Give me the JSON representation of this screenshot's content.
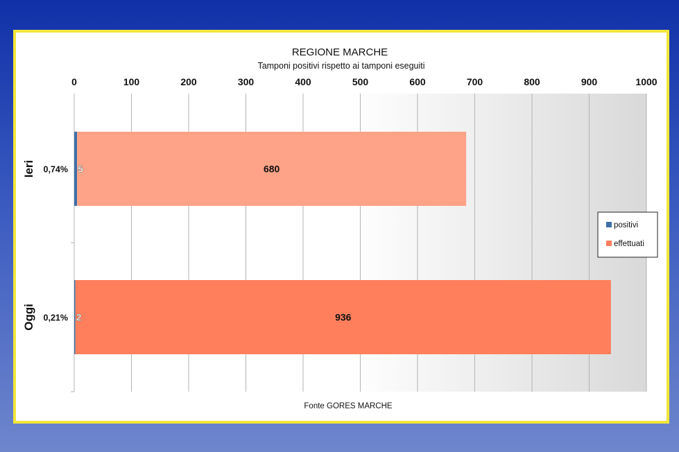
{
  "chart_data": {
    "type": "bar",
    "orientation": "horizontal",
    "stacked": true,
    "title": "REGIONE MARCHE",
    "subtitle": "Tamponi positivi rispetto ai tamponi eseguiti",
    "source": "Fonte GORES MARCHE",
    "categories": [
      "Ieri",
      "Oggi"
    ],
    "percent_labels": [
      "0,74%",
      "0,21%"
    ],
    "series": [
      {
        "name": "positivi",
        "values": [
          5,
          2
        ],
        "color": "#3f6fa5"
      },
      {
        "name": "effettuati",
        "values": [
          680,
          936
        ],
        "colors": [
          "#fea388",
          "#ff7f5c"
        ]
      }
    ],
    "xlim": [
      0,
      1000
    ],
    "ticks": [
      0,
      100,
      200,
      300,
      400,
      500,
      600,
      700,
      800,
      900,
      1000
    ],
    "grid": true,
    "legend_position": "right"
  }
}
